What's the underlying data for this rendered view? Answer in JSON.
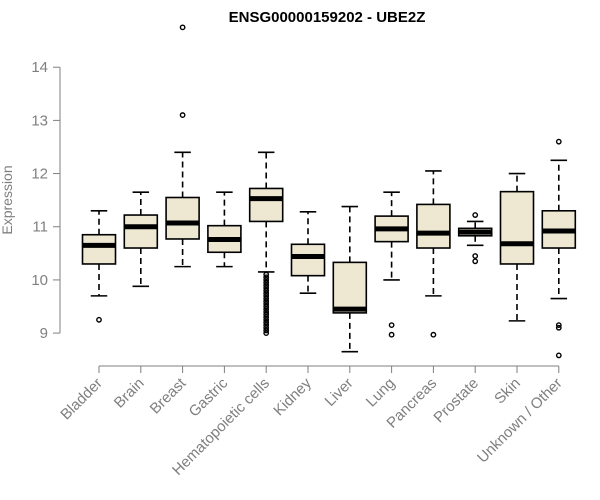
{
  "chart_data": {
    "type": "boxplot",
    "title": "ENSG00000159202 - UBE2Z",
    "xlabel": "",
    "ylabel": "Expression",
    "ylim": [
      8.4,
      14.7
    ],
    "yticks": [
      9,
      10,
      11,
      12,
      13,
      14
    ],
    "grid": false,
    "legend": "none",
    "colors": {
      "box_fill": "#eee8d3",
      "box_stroke": "#000000",
      "axis": "#7f7f7f",
      "text": "#7f7f7f"
    },
    "categories": [
      "Bladder",
      "Brain",
      "Breast",
      "Gastric",
      "Hematopoietic cells",
      "Kidney",
      "Liver",
      "Lung",
      "Pancreas",
      "Prostate",
      "Skin",
      "Unknown / Other"
    ],
    "boxes": [
      {
        "min": 9.7,
        "q1": 10.3,
        "median": 10.65,
        "q3": 10.85,
        "max": 11.3,
        "outliers": [
          9.25
        ]
      },
      {
        "min": 9.88,
        "q1": 10.6,
        "median": 11.0,
        "q3": 11.22,
        "max": 11.65,
        "outliers": []
      },
      {
        "min": 10.25,
        "q1": 10.77,
        "median": 11.07,
        "q3": 11.55,
        "max": 12.4,
        "outliers": [
          13.1,
          14.75
        ]
      },
      {
        "min": 10.25,
        "q1": 10.52,
        "median": 10.76,
        "q3": 11.02,
        "max": 11.65,
        "outliers": []
      },
      {
        "min": 10.15,
        "q1": 11.1,
        "median": 11.53,
        "q3": 11.72,
        "max": 12.4,
        "outliers": [
          10.1,
          10.0,
          9.9,
          9.8,
          9.7,
          9.6,
          9.5,
          9.4,
          9.3,
          9.2,
          9.1,
          9.0,
          10.05,
          9.95,
          9.85,
          9.75,
          9.65,
          9.55,
          9.45,
          9.35,
          9.25,
          9.15,
          9.05
        ]
      },
      {
        "min": 9.75,
        "q1": 10.08,
        "median": 10.44,
        "q3": 10.67,
        "max": 11.28,
        "outliers": []
      },
      {
        "min": 8.65,
        "q1": 9.38,
        "median": 9.45,
        "q3": 10.33,
        "max": 11.38,
        "outliers": []
      },
      {
        "min": 10.0,
        "q1": 10.72,
        "median": 10.96,
        "q3": 11.2,
        "max": 11.65,
        "outliers": [
          9.15,
          8.97
        ]
      },
      {
        "min": 9.7,
        "q1": 10.6,
        "median": 10.88,
        "q3": 11.42,
        "max": 12.05,
        "outliers": [
          8.97
        ]
      },
      {
        "min": 10.65,
        "q1": 10.83,
        "median": 10.9,
        "q3": 10.97,
        "max": 11.1,
        "outliers": [
          11.22,
          10.45,
          10.35
        ]
      },
      {
        "min": 9.23,
        "q1": 10.3,
        "median": 10.68,
        "q3": 11.66,
        "max": 12.0,
        "outliers": []
      },
      {
        "min": 9.65,
        "q1": 10.6,
        "median": 10.92,
        "q3": 11.3,
        "max": 12.25,
        "outliers": [
          12.6,
          9.15,
          9.1,
          8.58
        ]
      }
    ]
  }
}
